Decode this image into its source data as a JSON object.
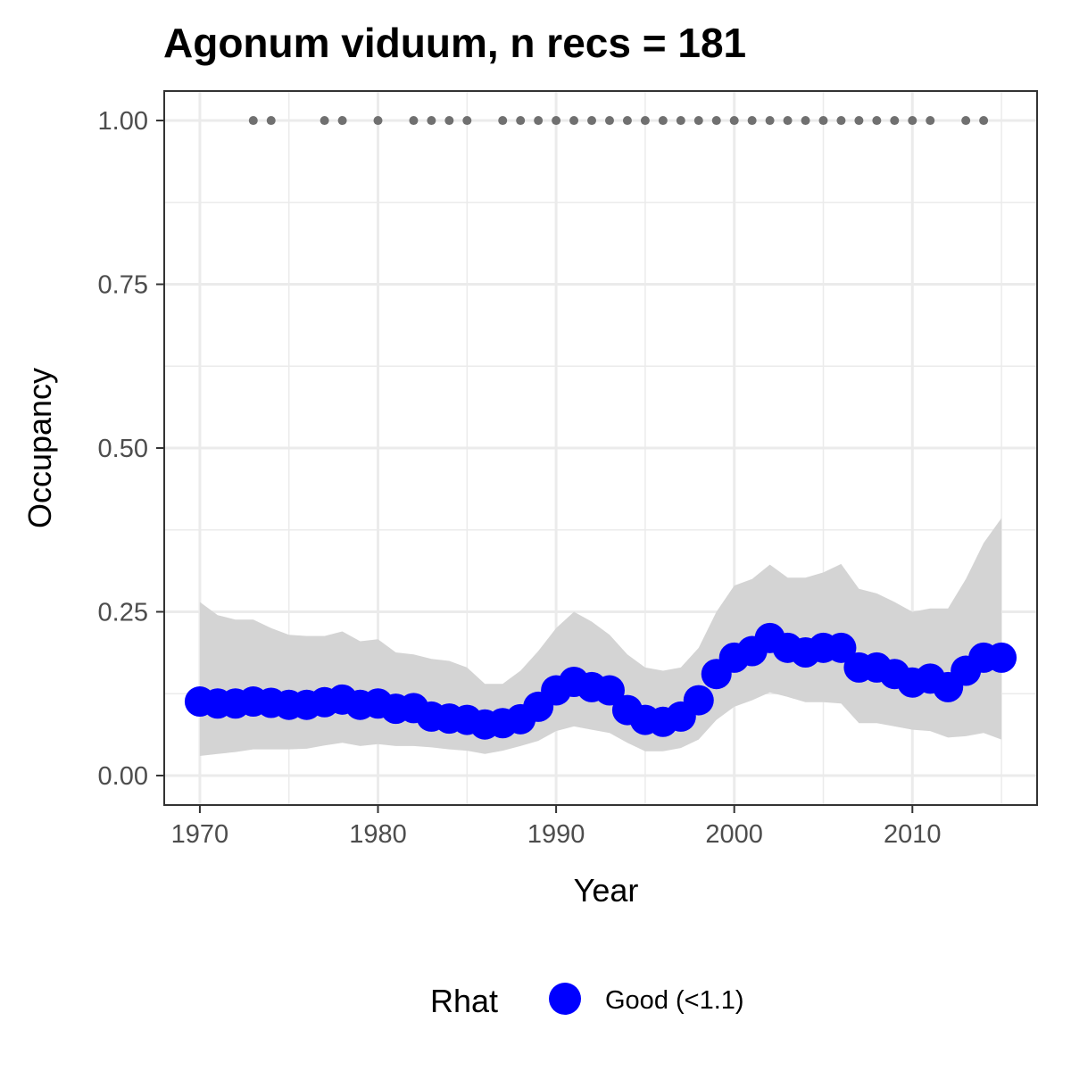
{
  "chart_data": {
    "type": "line",
    "title": "Agonum viduum, n recs = 181",
    "xlabel": "Year",
    "ylabel": "Occupancy",
    "xlim": [
      1968,
      2017
    ],
    "ylim": [
      -0.045,
      1.045
    ],
    "x_ticks": [
      1970,
      1980,
      1990,
      2000,
      2010
    ],
    "x_tick_labels": [
      "1970",
      "1980",
      "1990",
      "2000",
      "2010"
    ],
    "y_ticks": [
      0,
      0.25,
      0.5,
      0.75,
      1
    ],
    "y_tick_labels": [
      "0.00",
      "0.25",
      "0.50",
      "0.75",
      "1.00"
    ],
    "x_minor_ticks": [
      1975,
      1985,
      1995,
      2005,
      2015
    ],
    "y_minor_ticks": [
      0.125,
      0.375,
      0.625,
      0.875
    ],
    "grid": true,
    "legend": {
      "position": "bottom",
      "title": "Rhat",
      "entries": [
        {
          "label": "Good (<1.1)",
          "color": "#0000ff"
        }
      ]
    },
    "colors": {
      "point": "#0000ff",
      "ribbon": "#d4d4d4",
      "records": "#707070",
      "grid": "#ebebeb",
      "panel_border": "#333333"
    },
    "series": [
      {
        "name": "Good (<1.1)",
        "x": [
          1970,
          1971,
          1972,
          1973,
          1974,
          1975,
          1976,
          1977,
          1978,
          1979,
          1980,
          1981,
          1982,
          1983,
          1984,
          1985,
          1986,
          1987,
          1988,
          1989,
          1990,
          1991,
          1992,
          1993,
          1994,
          1995,
          1996,
          1997,
          1998,
          1999,
          2000,
          2001,
          2002,
          2003,
          2004,
          2005,
          2006,
          2007,
          2008,
          2009,
          2010,
          2011,
          2012,
          2013,
          2014,
          2015
        ],
        "y": [
          0.113,
          0.11,
          0.11,
          0.113,
          0.111,
          0.108,
          0.108,
          0.112,
          0.116,
          0.108,
          0.11,
          0.102,
          0.103,
          0.09,
          0.087,
          0.085,
          0.078,
          0.08,
          0.086,
          0.105,
          0.13,
          0.143,
          0.135,
          0.13,
          0.1,
          0.085,
          0.082,
          0.09,
          0.115,
          0.155,
          0.18,
          0.19,
          0.21,
          0.195,
          0.188,
          0.195,
          0.195,
          0.165,
          0.165,
          0.155,
          0.142,
          0.148,
          0.135,
          0.16,
          0.18,
          0.18
        ],
        "lower": [
          0.03,
          0.033,
          0.036,
          0.04,
          0.04,
          0.04,
          0.041,
          0.046,
          0.05,
          0.045,
          0.048,
          0.045,
          0.045,
          0.043,
          0.04,
          0.038,
          0.033,
          0.038,
          0.045,
          0.053,
          0.068,
          0.075,
          0.07,
          0.065,
          0.05,
          0.037,
          0.037,
          0.042,
          0.055,
          0.085,
          0.105,
          0.115,
          0.127,
          0.12,
          0.112,
          0.112,
          0.11,
          0.08,
          0.08,
          0.075,
          0.07,
          0.068,
          0.058,
          0.06,
          0.065,
          0.055
        ],
        "upper": [
          0.265,
          0.245,
          0.238,
          0.238,
          0.225,
          0.215,
          0.213,
          0.213,
          0.22,
          0.205,
          0.208,
          0.188,
          0.185,
          0.178,
          0.175,
          0.165,
          0.14,
          0.14,
          0.16,
          0.19,
          0.225,
          0.25,
          0.235,
          0.215,
          0.185,
          0.165,
          0.16,
          0.165,
          0.195,
          0.25,
          0.29,
          0.3,
          0.322,
          0.302,
          0.302,
          0.31,
          0.323,
          0.285,
          0.278,
          0.265,
          0.25,
          0.255,
          0.255,
          0.3,
          0.355,
          0.393
        ]
      }
    ],
    "records": {
      "y": 1.0,
      "x": [
        1973,
        1974,
        1977,
        1978,
        1980,
        1982,
        1983,
        1984,
        1985,
        1987,
        1988,
        1989,
        1990,
        1991,
        1992,
        1993,
        1994,
        1995,
        1996,
        1997,
        1998,
        1999,
        2000,
        2001,
        2002,
        2003,
        2004,
        2005,
        2006,
        2007,
        2008,
        2009,
        2010,
        2011,
        2013,
        2014
      ]
    }
  }
}
